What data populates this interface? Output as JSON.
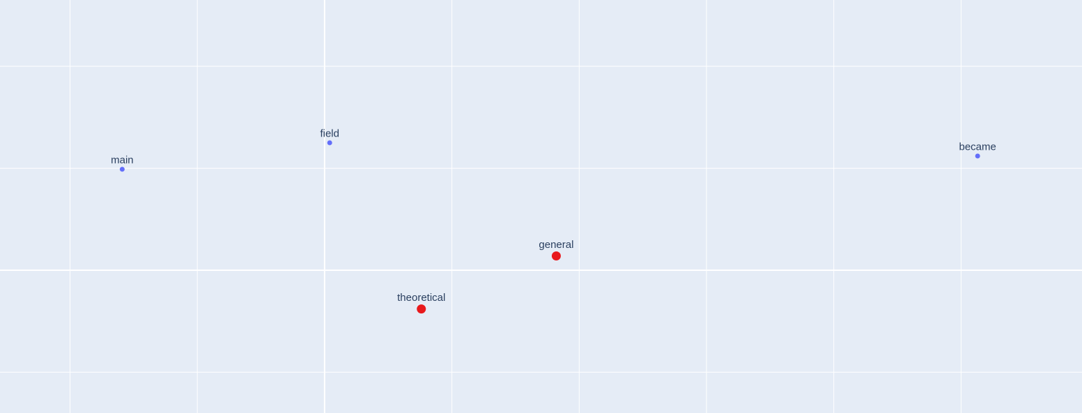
{
  "chart_data": {
    "type": "scatter",
    "title": "",
    "xlabel": "",
    "ylabel": "",
    "grid": true,
    "legend": "none",
    "background_color": "#e5ecf6",
    "grid_color": "#ffffff",
    "xlim": [
      -2.55,
      5.95
    ],
    "ylim": [
      -1.4,
      2.65
    ],
    "x_gridlines": [
      -2,
      -1,
      0,
      1,
      2,
      3,
      4,
      5
    ],
    "y_gridlines": [
      -1,
      0,
      1,
      2
    ],
    "series": [
      {
        "color": "#636efa",
        "marker_size": "small",
        "points": [
          {
            "x": -1.59,
            "y": 0.99,
            "label": "main"
          },
          {
            "x": 0.04,
            "y": 1.25,
            "label": "field"
          },
          {
            "x": 5.13,
            "y": 1.12,
            "label": "became"
          }
        ]
      },
      {
        "color": "#e8191c",
        "marker_size": "large",
        "points": [
          {
            "x": 0.76,
            "y": -0.38,
            "label": "theoretical"
          },
          {
            "x": 1.82,
            "y": 0.14,
            "label": "general"
          }
        ]
      }
    ]
  }
}
